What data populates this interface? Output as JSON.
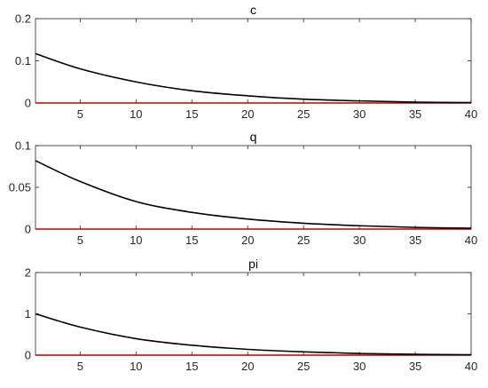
{
  "chart_data": [
    {
      "type": "line",
      "title": "c",
      "xlim": [
        1,
        40
      ],
      "ylim": [
        0,
        0.2
      ],
      "x_ticks": [
        5,
        10,
        15,
        20,
        25,
        30,
        35,
        40
      ],
      "x_tick_labels": [
        "5",
        "10",
        "15",
        "20",
        "25",
        "30",
        "35",
        "40"
      ],
      "y_ticks": [
        0,
        0.1,
        0.2
      ],
      "y_tick_labels": [
        "0",
        "0.1",
        "0.2"
      ],
      "grid": false,
      "series": [
        {
          "color": "#000000",
          "x": [
            1,
            5,
            10,
            15,
            20,
            25,
            30,
            35,
            40
          ],
          "values": [
            0.117,
            0.081,
            0.05,
            0.029,
            0.017,
            0.009,
            0.005,
            0.002,
            0.001
          ]
        },
        {
          "color": "#c00000",
          "x": [
            1,
            40
          ],
          "values": [
            0,
            0
          ]
        }
      ]
    },
    {
      "type": "line",
      "title": "q",
      "xlim": [
        1,
        40
      ],
      "ylim": [
        0,
        0.1
      ],
      "x_ticks": [
        5,
        10,
        15,
        20,
        25,
        30,
        35,
        40
      ],
      "x_tick_labels": [
        "5",
        "10",
        "15",
        "20",
        "25",
        "30",
        "35",
        "40"
      ],
      "y_ticks": [
        0,
        0.05,
        0.1
      ],
      "y_tick_labels": [
        "0",
        "0.05",
        "0.1"
      ],
      "grid": false,
      "series": [
        {
          "color": "#000000",
          "x": [
            1,
            5,
            10,
            15,
            20,
            25,
            30,
            35,
            40
          ],
          "values": [
            0.082,
            0.057,
            0.033,
            0.02,
            0.012,
            0.007,
            0.004,
            0.002,
            0.001
          ]
        },
        {
          "color": "#c00000",
          "x": [
            1,
            40
          ],
          "values": [
            0,
            0
          ]
        }
      ]
    },
    {
      "type": "line",
      "title": "pi",
      "xlim": [
        1,
        40
      ],
      "ylim": [
        0,
        2
      ],
      "x_ticks": [
        5,
        10,
        15,
        20,
        25,
        30,
        35,
        40
      ],
      "x_tick_labels": [
        "5",
        "10",
        "15",
        "20",
        "25",
        "30",
        "35",
        "40"
      ],
      "y_ticks": [
        0,
        1,
        2
      ],
      "y_tick_labels": [
        "0",
        "1",
        "2"
      ],
      "grid": false,
      "series": [
        {
          "color": "#000000",
          "x": [
            1,
            5,
            10,
            15,
            20,
            25,
            30,
            35,
            40
          ],
          "values": [
            1.0,
            0.68,
            0.4,
            0.24,
            0.14,
            0.08,
            0.04,
            0.02,
            0.01
          ]
        },
        {
          "color": "#c00000",
          "x": [
            1,
            40
          ],
          "values": [
            0,
            0
          ]
        }
      ]
    }
  ]
}
